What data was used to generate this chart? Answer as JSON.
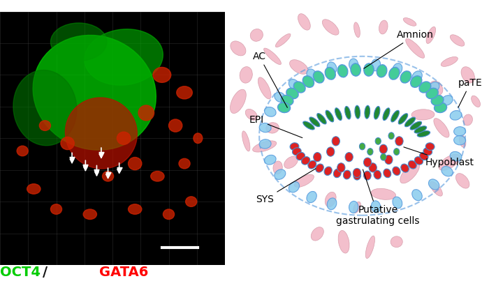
{
  "left_panel_label": "OCT4/GATA6",
  "oct4_color": "#00cc00",
  "gata6_color": "#ff0000",
  "slash_color": "#111111",
  "bg_color": "#ffffff",
  "diagram_bg": "#ffffff",
  "pink_cell_color": "#f0b0c0",
  "amnion_outer_color": "#5599dd",
  "amnion_inner_color": "#44cc99",
  "epi_green_color": "#228833",
  "epi_blue_outline": "#4488cc",
  "red_cell_color": "#dd2222",
  "hypoblast_green": "#44aa44",
  "labels": {
    "AC": "AC",
    "Amnion": "Amnion",
    "paTE": "paTE",
    "EPI": "EPI",
    "SYS": "SYS",
    "Hypoblast": "Hypoblast",
    "Putative": "Putative\ngastrulating cells"
  },
  "label_fontsize": 10,
  "scale_bar_color": "#ffffff"
}
